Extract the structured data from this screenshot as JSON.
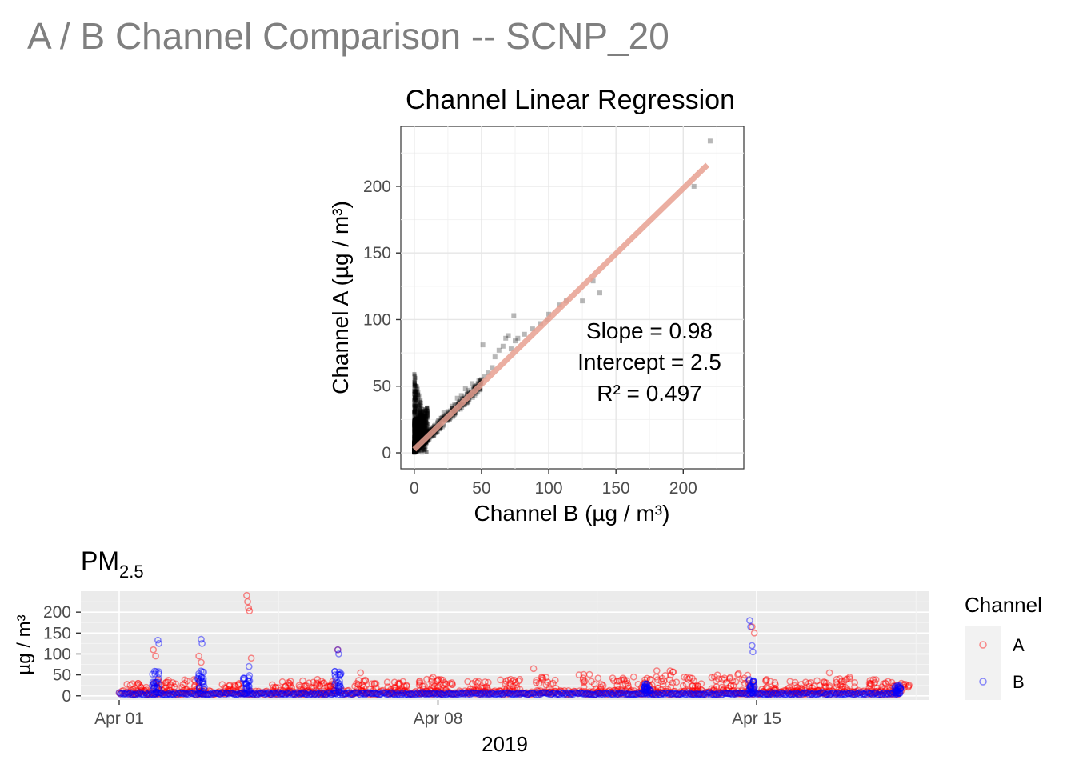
{
  "page": {
    "title": "A / B Channel Comparison -- SCNP_20"
  },
  "chart_data": [
    {
      "type": "scatter",
      "title": "Channel Linear Regression",
      "xlabel": "Channel B (µg / m³)",
      "ylabel": "Channel A (µg / m³)",
      "xlim": [
        -10,
        245
      ],
      "ylim": [
        -12,
        245
      ],
      "xticks": [
        0,
        50,
        100,
        150,
        200
      ],
      "yticks": [
        0,
        50,
        100,
        150,
        200
      ],
      "grid": true,
      "point_color": "#000000",
      "fit_color": "#e8a090",
      "annotations": [
        "Slope = 0.98",
        "Intercept = 2.5",
        "R² = 0.497"
      ],
      "fit": {
        "slope": 0.98,
        "intercept": 2.5,
        "x_range": [
          0,
          218
        ]
      },
      "outlier_points": [
        [
          220,
          234
        ],
        [
          208,
          200
        ],
        [
          138,
          120
        ],
        [
          133,
          129
        ],
        [
          125,
          114
        ],
        [
          113,
          114
        ],
        [
          108,
          111
        ],
        [
          100,
          104
        ],
        [
          99,
          100
        ],
        [
          94,
          97
        ],
        [
          88,
          93
        ],
        [
          82,
          89
        ],
        [
          77,
          86
        ],
        [
          74,
          103
        ],
        [
          75,
          84
        ],
        [
          72,
          78
        ],
        [
          70,
          88
        ],
        [
          68,
          86
        ],
        [
          66,
          80
        ],
        [
          63,
          77
        ],
        [
          60,
          72
        ],
        [
          58,
          64
        ],
        [
          55,
          60
        ],
        [
          52,
          57
        ],
        [
          51,
          81
        ],
        [
          50,
          55
        ],
        [
          48,
          54
        ],
        [
          45,
          50
        ],
        [
          43,
          52
        ],
        [
          40,
          47
        ],
        [
          38,
          48
        ],
        [
          35,
          43
        ],
        [
          32,
          41
        ],
        [
          30,
          36
        ],
        [
          28,
          35
        ],
        [
          25,
          31
        ],
        [
          22,
          30
        ],
        [
          20,
          26
        ],
        [
          18,
          24
        ],
        [
          15,
          20
        ],
        [
          12,
          18
        ],
        [
          10,
          14
        ],
        [
          8,
          12
        ],
        [
          6,
          10
        ],
        [
          4,
          7
        ],
        [
          2,
          4
        ]
      ]
    },
    {
      "type": "scatter",
      "title": "PM2.5",
      "title_main": "PM",
      "title_sub": "2.5",
      "xlabel": "2019",
      "ylabel": "µg / m³",
      "xticks": [
        "Apr 01",
        "Apr 08",
        "Apr 15"
      ],
      "x_range_days": [
        -0.3,
        17.6
      ],
      "ylim": [
        -10,
        250
      ],
      "yticks": [
        0,
        50,
        100,
        150,
        200
      ],
      "legend": {
        "title": "Channel",
        "position": "right"
      },
      "series": [
        {
          "name": "A",
          "color": "#ff0000",
          "peaks": [
            [
              0.75,
              110
            ],
            [
              0.8,
              95
            ],
            [
              1.75,
              95
            ],
            [
              1.8,
              80
            ],
            [
              2.8,
              240
            ],
            [
              2.82,
              225
            ],
            [
              2.84,
              210
            ],
            [
              2.86,
              203
            ],
            [
              2.9,
              90
            ],
            [
              4.8,
              110
            ],
            [
              5.3,
              55
            ],
            [
              6.6,
              30
            ],
            [
              9.1,
              65
            ],
            [
              10.1,
              50
            ],
            [
              11.3,
              45
            ],
            [
              11.8,
              45
            ],
            [
              13.9,
              165
            ],
            [
              13.95,
              150
            ],
            [
              15.6,
              55
            ],
            [
              16.5,
              30
            ]
          ],
          "bursts": [
            [
              0.4,
              25
            ],
            [
              1.0,
              35
            ],
            [
              1.6,
              35
            ],
            [
              2.5,
              30
            ],
            [
              3.6,
              30
            ],
            [
              4.2,
              35
            ],
            [
              4.5,
              30
            ],
            [
              5.4,
              35
            ],
            [
              6.1,
              30
            ],
            [
              6.8,
              35
            ],
            [
              7.1,
              40
            ],
            [
              7.9,
              30
            ],
            [
              8.6,
              35
            ],
            [
              9.4,
              40
            ],
            [
              10.4,
              50
            ],
            [
              11.0,
              40
            ],
            [
              11.5,
              45
            ],
            [
              12.0,
              55
            ],
            [
              12.6,
              40
            ],
            [
              13.2,
              45
            ],
            [
              13.7,
              50
            ],
            [
              14.3,
              35
            ],
            [
              14.9,
              30
            ],
            [
              15.4,
              35
            ],
            [
              16.0,
              40
            ],
            [
              16.7,
              35
            ],
            [
              17.1,
              30
            ]
          ]
        },
        {
          "name": "B",
          "color": "#0000ff",
          "peaks": [
            [
              0.85,
              133
            ],
            [
              0.87,
              125
            ],
            [
              1.8,
              135
            ],
            [
              1.82,
              125
            ],
            [
              2.85,
              70
            ],
            [
              4.8,
              110
            ],
            [
              4.82,
              100
            ],
            [
              13.85,
              180
            ],
            [
              13.87,
              165
            ],
            [
              13.9,
              120
            ],
            [
              13.92,
              105
            ],
            [
              17.1,
              25
            ]
          ],
          "bursts": [
            [
              0.8,
              55
            ],
            [
              1.8,
              55
            ],
            [
              2.8,
              45
            ],
            [
              4.8,
              55
            ],
            [
              11.6,
              25
            ],
            [
              13.9,
              35
            ],
            [
              17.1,
              20
            ]
          ]
        }
      ]
    }
  ]
}
